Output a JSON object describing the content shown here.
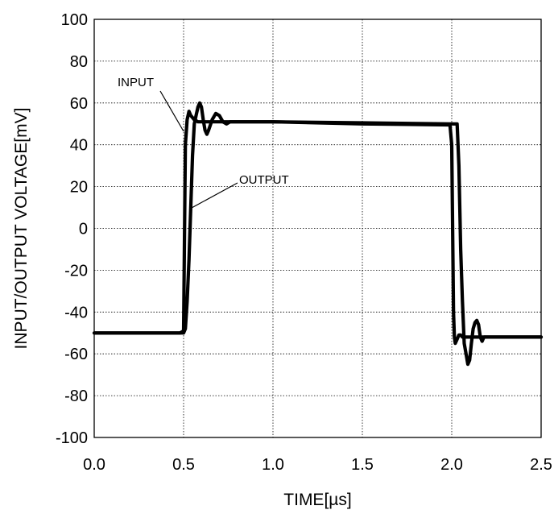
{
  "chart_data": {
    "type": "line",
    "xlabel": "TIME[µs]",
    "ylabel": "INPUT/OUTPUT VOLTAGE[mV]",
    "xlim": [
      0.0,
      2.5
    ],
    "ylim": [
      -100,
      100
    ],
    "xticks": [
      "0.0",
      "0.5",
      "1.0",
      "1.5",
      "2.0",
      "2.5"
    ],
    "yticks": [
      "100",
      "80",
      "60",
      "40",
      "20",
      "0",
      "-20",
      "-40",
      "-60",
      "-80",
      "-100"
    ],
    "grid": true,
    "annotations": [
      {
        "text": "INPUT",
        "series": "input"
      },
      {
        "text": "OUTPUT",
        "series": "output"
      }
    ],
    "series": [
      {
        "name": "INPUT",
        "x": [
          0.0,
          0.48,
          0.5,
          0.51,
          0.52,
          0.53,
          0.54,
          0.56,
          0.58,
          0.6,
          0.65,
          0.7,
          0.8,
          1.0,
          1.5,
          1.99,
          2.0,
          2.01,
          2.015,
          2.02,
          2.03,
          2.04,
          2.05,
          2.06,
          2.08,
          2.12,
          2.5
        ],
        "y": [
          -50,
          -50,
          -49,
          40,
          52,
          56,
          54,
          52,
          51,
          51,
          51,
          51,
          51,
          51,
          50,
          49.5,
          40,
          -40,
          -52,
          -55,
          -53,
          -51,
          -51,
          -52,
          -52,
          -52,
          -52
        ]
      },
      {
        "name": "OUTPUT",
        "x": [
          0.0,
          0.5,
          0.51,
          0.52,
          0.53,
          0.54,
          0.55,
          0.56,
          0.57,
          0.58,
          0.59,
          0.6,
          0.61,
          0.62,
          0.63,
          0.64,
          0.66,
          0.68,
          0.7,
          0.72,
          0.74,
          0.76,
          0.8,
          1.0,
          1.5,
          2.0,
          2.03,
          2.04,
          2.05,
          2.06,
          2.07,
          2.08,
          2.09,
          2.1,
          2.11,
          2.12,
          2.13,
          2.14,
          2.15,
          2.16,
          2.17,
          2.18,
          2.2,
          2.5
        ],
        "y": [
          -50,
          -50,
          -48,
          -35,
          -15,
          10,
          35,
          50,
          54,
          58,
          60,
          58,
          52,
          47,
          45,
          47,
          52,
          55,
          54,
          51,
          50,
          51,
          51,
          51,
          50.5,
          50,
          50,
          30,
          -10,
          -35,
          -55,
          -60,
          -65,
          -63,
          -55,
          -48,
          -45,
          -44,
          -46,
          -52,
          -54,
          -52,
          -52,
          -52
        ]
      }
    ]
  }
}
